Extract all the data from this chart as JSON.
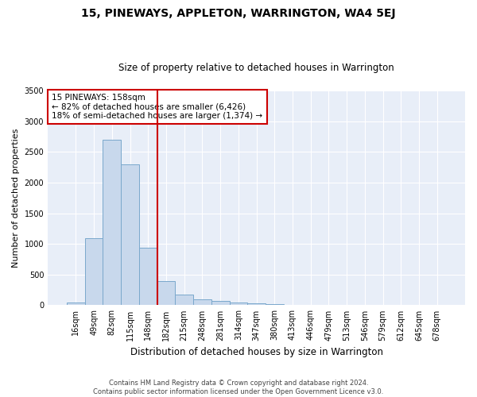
{
  "title": "15, PINEWAYS, APPLETON, WARRINGTON, WA4 5EJ",
  "subtitle": "Size of property relative to detached houses in Warrington",
  "xlabel": "Distribution of detached houses by size in Warrington",
  "ylabel": "Number of detached properties",
  "footer_line1": "Contains HM Land Registry data © Crown copyright and database right 2024.",
  "footer_line2": "Contains public sector information licensed under the Open Government Licence v3.0.",
  "annotation_line1": "15 PINEWAYS: 158sqm",
  "annotation_line2": "← 82% of detached houses are smaller (6,426)",
  "annotation_line3": "18% of semi-detached houses are larger (1,374) →",
  "bar_color": "#c8d8ec",
  "bar_edge_color": "#7aa8cc",
  "vline_color": "#cc0000",
  "annotation_box_color": "#cc0000",
  "bg_color": "#e8eef8",
  "categories": [
    "16sqm",
    "49sqm",
    "82sqm",
    "115sqm",
    "148sqm",
    "182sqm",
    "215sqm",
    "248sqm",
    "281sqm",
    "314sqm",
    "347sqm",
    "380sqm",
    "413sqm",
    "446sqm",
    "479sqm",
    "513sqm",
    "546sqm",
    "579sqm",
    "612sqm",
    "645sqm",
    "678sqm"
  ],
  "values": [
    50,
    1090,
    2700,
    2300,
    940,
    400,
    170,
    95,
    70,
    45,
    28,
    15,
    8,
    5,
    3,
    2,
    1,
    1,
    0,
    0,
    0
  ],
  "ylim": [
    0,
    3500
  ],
  "yticks": [
    0,
    500,
    1000,
    1500,
    2000,
    2500,
    3000,
    3500
  ],
  "vline_x_index": 4.5,
  "title_fontsize": 10,
  "subtitle_fontsize": 8.5,
  "ylabel_fontsize": 8,
  "xlabel_fontsize": 8.5,
  "tick_fontsize": 7,
  "annot_fontsize": 7.5,
  "footer_fontsize": 6
}
